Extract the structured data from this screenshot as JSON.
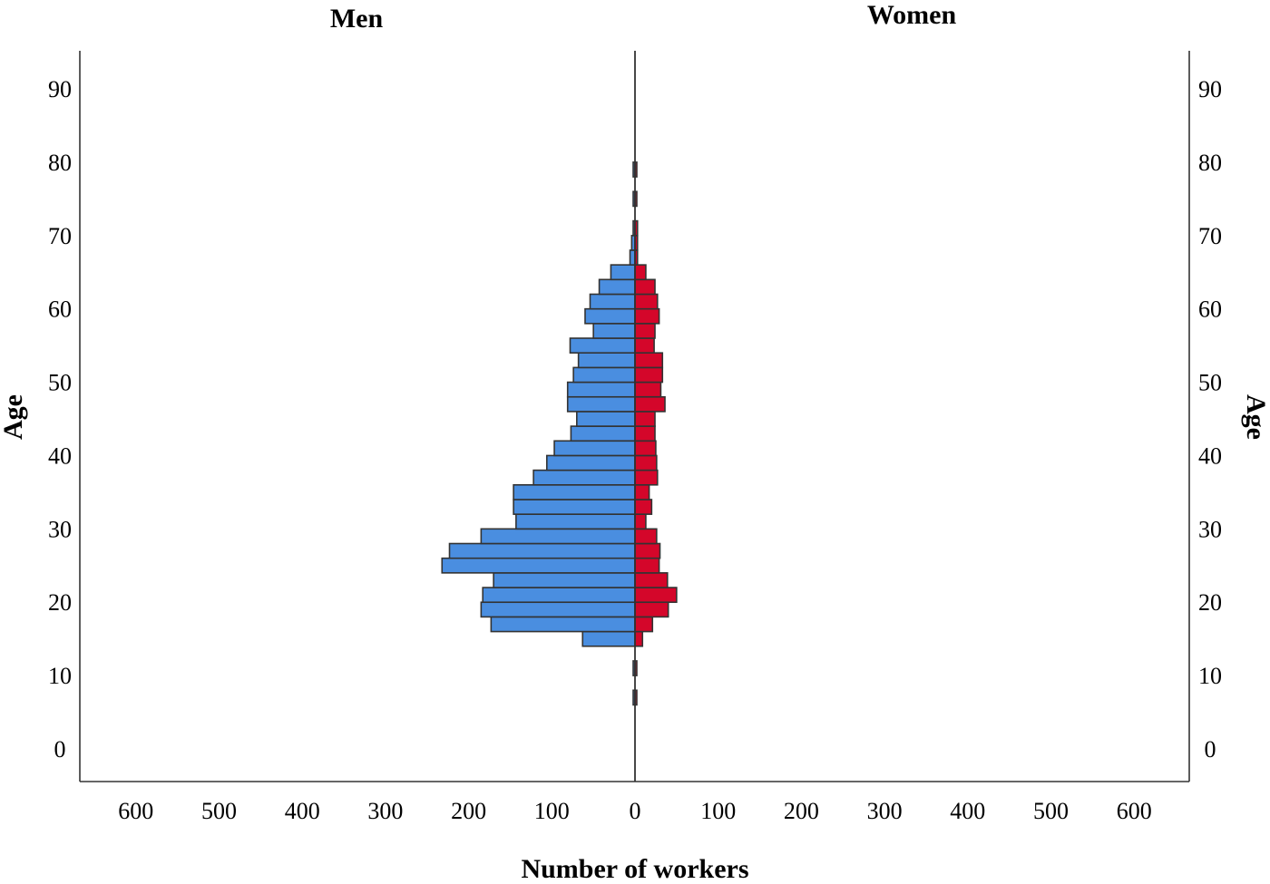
{
  "chart_data": {
    "type": "bar",
    "orientation": "horizontal-population-pyramid",
    "panels": [
      {
        "name": "Men",
        "side": "left",
        "color": "#4a8ee0"
      },
      {
        "name": "Women",
        "side": "right",
        "color": "#d4062a"
      }
    ],
    "xlabel": "Number of workers",
    "ylabel": "Age",
    "xlim": [
      0,
      670
    ],
    "ylim": [
      -5,
      96
    ],
    "x_ticks": [
      600,
      500,
      400,
      300,
      200,
      100,
      0,
      100,
      200,
      300,
      400,
      500,
      600
    ],
    "y_ticks": [
      0,
      10,
      20,
      30,
      40,
      50,
      60,
      70,
      80,
      90
    ],
    "bin_width_years": 2,
    "bins": [
      {
        "age_from": 6,
        "age_to": 8,
        "men": 1,
        "women": 1
      },
      {
        "age_from": 10,
        "age_to": 12,
        "men": 1,
        "women": 1
      },
      {
        "age_from": 14,
        "age_to": 16,
        "men": 63,
        "women": 9
      },
      {
        "age_from": 16,
        "age_to": 18,
        "men": 173,
        "women": 21
      },
      {
        "age_from": 18,
        "age_to": 20,
        "men": 185,
        "women": 40
      },
      {
        "age_from": 20,
        "age_to": 22,
        "men": 183,
        "women": 50
      },
      {
        "age_from": 22,
        "age_to": 24,
        "men": 170,
        "women": 39
      },
      {
        "age_from": 24,
        "age_to": 26,
        "men": 232,
        "women": 29
      },
      {
        "age_from": 26,
        "age_to": 28,
        "men": 223,
        "women": 30
      },
      {
        "age_from": 28,
        "age_to": 30,
        "men": 185,
        "women": 26
      },
      {
        "age_from": 30,
        "age_to": 32,
        "men": 143,
        "women": 13
      },
      {
        "age_from": 32,
        "age_to": 34,
        "men": 146,
        "women": 20
      },
      {
        "age_from": 34,
        "age_to": 36,
        "men": 146,
        "women": 17
      },
      {
        "age_from": 36,
        "age_to": 38,
        "men": 122,
        "women": 27
      },
      {
        "age_from": 38,
        "age_to": 40,
        "men": 106,
        "women": 26
      },
      {
        "age_from": 40,
        "age_to": 42,
        "men": 97,
        "women": 25
      },
      {
        "age_from": 42,
        "age_to": 44,
        "men": 77,
        "women": 24
      },
      {
        "age_from": 44,
        "age_to": 46,
        "men": 70,
        "women": 24
      },
      {
        "age_from": 46,
        "age_to": 48,
        "men": 81,
        "women": 36
      },
      {
        "age_from": 48,
        "age_to": 50,
        "men": 81,
        "women": 31
      },
      {
        "age_from": 50,
        "age_to": 52,
        "men": 74,
        "women": 33
      },
      {
        "age_from": 52,
        "age_to": 54,
        "men": 68,
        "women": 33
      },
      {
        "age_from": 54,
        "age_to": 56,
        "men": 78,
        "women": 23
      },
      {
        "age_from": 56,
        "age_to": 58,
        "men": 50,
        "women": 24
      },
      {
        "age_from": 58,
        "age_to": 60,
        "men": 60,
        "women": 29
      },
      {
        "age_from": 60,
        "age_to": 62,
        "men": 54,
        "women": 27
      },
      {
        "age_from": 62,
        "age_to": 64,
        "men": 43,
        "women": 24
      },
      {
        "age_from": 64,
        "age_to": 66,
        "men": 29,
        "women": 13
      },
      {
        "age_from": 66,
        "age_to": 68,
        "men": 6,
        "women": 3
      },
      {
        "age_from": 68,
        "age_to": 70,
        "men": 4,
        "women": 3
      },
      {
        "age_from": 70,
        "age_to": 72,
        "men": 1,
        "women": 3
      },
      {
        "age_from": 74,
        "age_to": 76,
        "men": 1,
        "women": 1
      },
      {
        "age_from": 78,
        "age_to": 80,
        "men": 1,
        "women": 1
      }
    ],
    "grid": false,
    "legend": "none"
  }
}
